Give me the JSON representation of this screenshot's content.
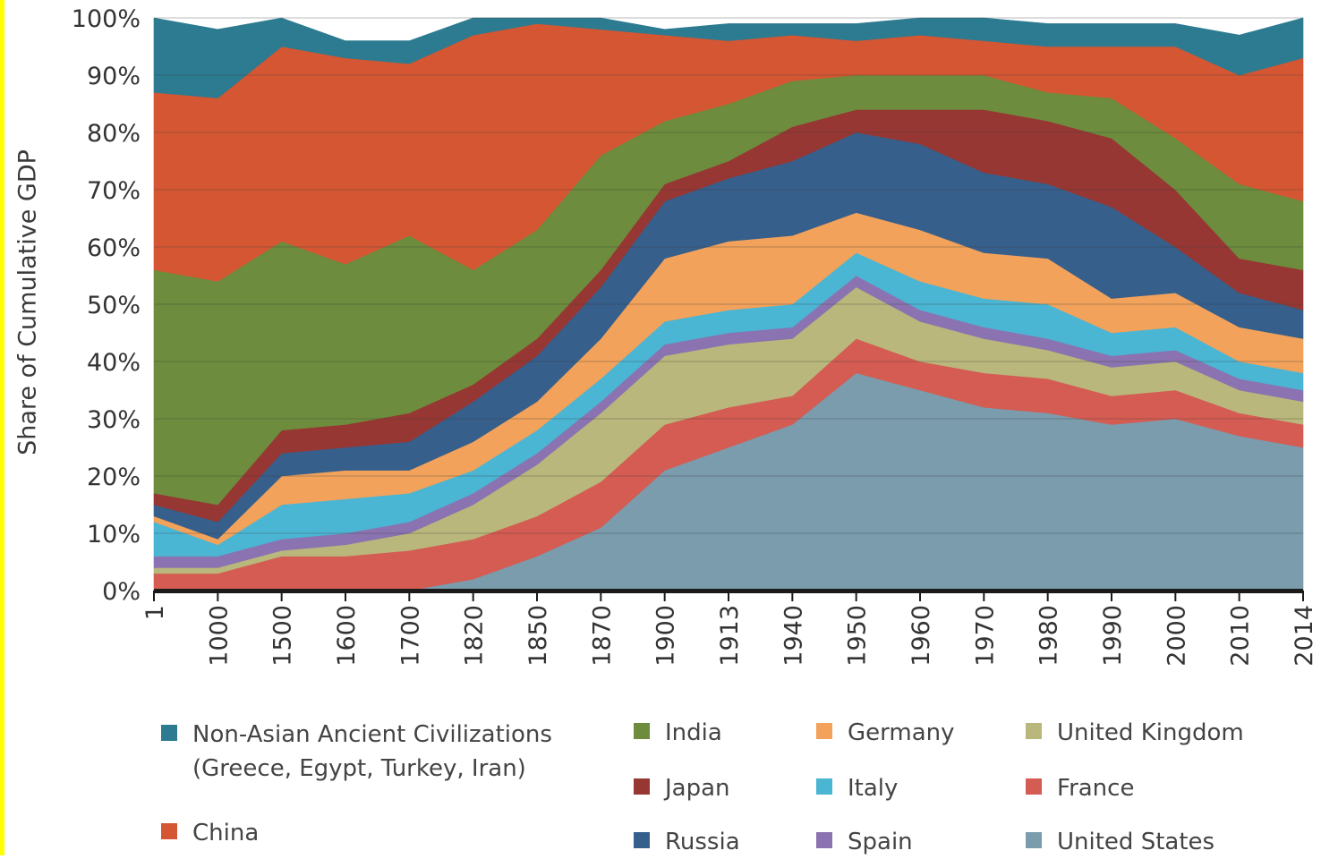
{
  "chart_data": {
    "type": "area",
    "stacked": true,
    "title": "",
    "xlabel": "",
    "ylabel": "Share of Cumulative GDP",
    "ylim": [
      0,
      100
    ],
    "y_ticks": [
      "0%",
      "10%",
      "20%",
      "30%",
      "40%",
      "50%",
      "60%",
      "70%",
      "80%",
      "90%",
      "100%"
    ],
    "grid": true,
    "legend_position": "bottom",
    "categories": [
      "1",
      "1000",
      "1500",
      "1600",
      "1700",
      "1820",
      "1850",
      "1870",
      "1900",
      "1913",
      "1940",
      "1950",
      "1960",
      "1970",
      "1980",
      "1990",
      "2000",
      "2010",
      "2014"
    ],
    "series": [
      {
        "name": "United States",
        "color": "#7a9cad",
        "values": [
          0,
          0,
          0,
          0,
          0,
          2,
          6,
          11,
          21,
          25,
          29,
          38,
          35,
          32,
          31,
          29,
          30,
          27,
          25
        ]
      },
      {
        "name": "France",
        "color": "#d45c52",
        "values": [
          3,
          3,
          6,
          6,
          7,
          7,
          7,
          8,
          8,
          7,
          5,
          6,
          5,
          6,
          6,
          5,
          5,
          4,
          4
        ]
      },
      {
        "name": "United Kingdom",
        "color": "#b9b77c",
        "values": [
          1,
          1,
          1,
          2,
          3,
          6,
          9,
          12,
          12,
          11,
          10,
          9,
          7,
          6,
          5,
          5,
          5,
          4,
          4
        ]
      },
      {
        "name": "Spain",
        "color": "#8a73b0",
        "values": [
          2,
          2,
          2,
          2,
          2,
          2,
          2,
          2,
          2,
          2,
          2,
          2,
          2,
          2,
          2,
          2,
          2,
          2,
          2
        ]
      },
      {
        "name": "Italy",
        "color": "#4bb5d4",
        "values": [
          6,
          2,
          6,
          6,
          5,
          4,
          4,
          4,
          4,
          4,
          4,
          4,
          5,
          5,
          6,
          4,
          4,
          3,
          3
        ]
      },
      {
        "name": "Germany",
        "color": "#f2a25a",
        "values": [
          1,
          1,
          5,
          5,
          4,
          5,
          5,
          7,
          11,
          12,
          12,
          7,
          9,
          8,
          8,
          6,
          6,
          6,
          6
        ]
      },
      {
        "name": "Russia",
        "color": "#365f8c",
        "values": [
          2,
          3,
          4,
          4,
          5,
          7,
          8,
          9,
          10,
          11,
          13,
          14,
          15,
          14,
          13,
          16,
          8,
          6,
          5
        ]
      },
      {
        "name": "Japan",
        "color": "#973733",
        "values": [
          2,
          3,
          4,
          4,
          5,
          3,
          3,
          3,
          3,
          3,
          6,
          4,
          6,
          11,
          11,
          12,
          10,
          6,
          7
        ]
      },
      {
        "name": "India",
        "color": "#6d8c3d",
        "values": [
          39,
          39,
          33,
          28,
          31,
          20,
          19,
          20,
          11,
          10,
          8,
          6,
          6,
          6,
          5,
          7,
          9,
          13,
          12
        ]
      },
      {
        "name": "China",
        "color": "#d45632",
        "values": [
          31,
          32,
          34,
          36,
          30,
          41,
          36,
          22,
          15,
          11,
          8,
          6,
          7,
          6,
          8,
          9,
          16,
          19,
          25
        ]
      },
      {
        "name": "Non-Asian Ancient Civilizations (Greece, Egypt, Turkey, Iran)",
        "color": "#2c7b90",
        "values": [
          13,
          12,
          5,
          3,
          4,
          3,
          1,
          2,
          1,
          3,
          2,
          3,
          3,
          4,
          4,
          4,
          4,
          7,
          7
        ]
      }
    ]
  },
  "legend": [
    {
      "line1": "Non-Asian Ancient Civilizations",
      "line2": "(Greece, Egypt, Turkey, Iran)",
      "color": "#2c7b90"
    },
    {
      "line1": "China",
      "color": "#d45632"
    },
    {
      "line1": "India",
      "color": "#6d8c3d"
    },
    {
      "line1": "Japan",
      "color": "#973733"
    },
    {
      "line1": "Russia",
      "color": "#365f8c"
    },
    {
      "line1": "Germany",
      "color": "#f2a25a"
    },
    {
      "line1": "Italy",
      "color": "#4bb5d4"
    },
    {
      "line1": "Spain",
      "color": "#8a73b0"
    },
    {
      "line1": "United Kingdom",
      "color": "#b9b77c"
    },
    {
      "line1": "France",
      "color": "#d45c52"
    },
    {
      "line1": "United States",
      "color": "#7a9cad"
    }
  ]
}
